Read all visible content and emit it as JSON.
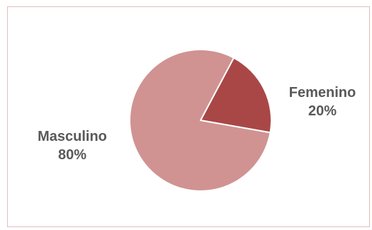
{
  "chart_data": {
    "type": "pie",
    "title": "",
    "slices": [
      {
        "label": "Femenino",
        "value": 20,
        "display": "20%",
        "color": "#a94747"
      },
      {
        "label": "Masculino",
        "value": 80,
        "display": "80%",
        "color": "#d09392"
      }
    ],
    "start_angle_deg": 62,
    "direction": "clockwise",
    "slice_border_color": "#ffffff"
  }
}
